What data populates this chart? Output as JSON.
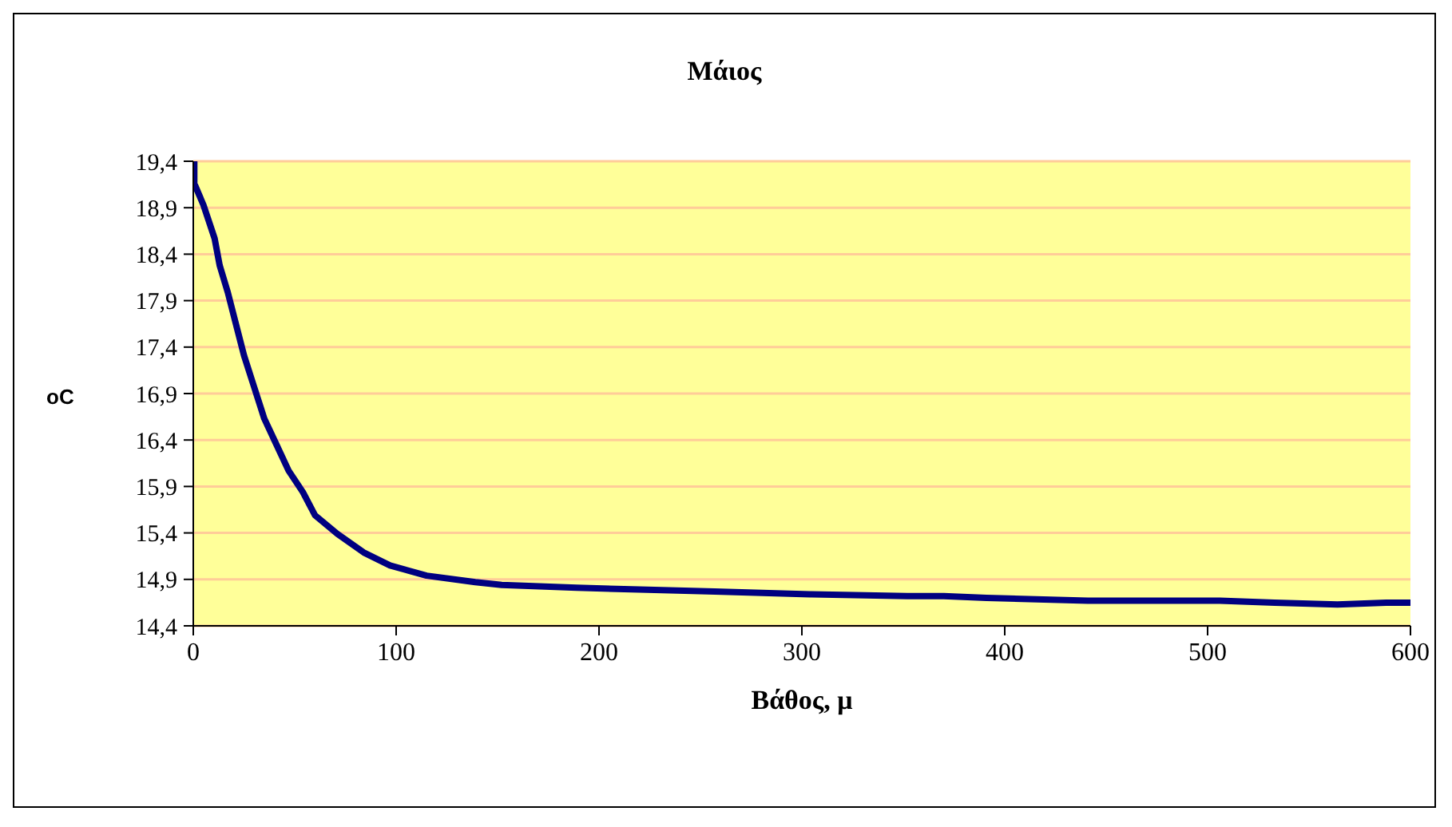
{
  "chart_data": {
    "type": "line",
    "title": "Μάιος",
    "xlabel": "Βάθος, μ",
    "ylabel": "oC",
    "x": [
      0.5,
      0.5,
      5,
      10.5,
      13,
      17,
      21,
      25,
      30,
      35,
      41,
      47,
      54,
      60,
      71,
      84,
      97,
      115,
      139,
      152,
      189,
      220,
      257,
      304,
      352,
      370,
      391,
      441,
      506,
      533,
      564,
      588,
      600
    ],
    "series": [
      {
        "color": "#000080",
        "values": [
          19.39,
          19.16,
          18.93,
          18.57,
          18.28,
          17.99,
          17.65,
          17.31,
          16.97,
          16.63,
          16.35,
          16.07,
          15.84,
          15.59,
          15.39,
          15.19,
          15.05,
          14.94,
          14.87,
          14.84,
          14.81,
          14.79,
          14.77,
          14.74,
          14.72,
          14.72,
          14.7,
          14.67,
          14.67,
          14.65,
          14.63,
          14.65,
          14.65
        ]
      }
    ],
    "xlim": [
      0,
      600
    ],
    "xticks": [
      0,
      100,
      200,
      300,
      400,
      500,
      600
    ],
    "ylim": [
      14.4,
      19.4
    ],
    "yticks": [
      {
        "value": 14.4,
        "label": "14,4"
      },
      {
        "value": 14.9,
        "label": "14,9"
      },
      {
        "value": 15.4,
        "label": "15,4"
      },
      {
        "value": 15.9,
        "label": "15,9"
      },
      {
        "value": 16.4,
        "label": "16,4"
      },
      {
        "value": 16.9,
        "label": "16,9"
      },
      {
        "value": 17.4,
        "label": "17,4"
      },
      {
        "value": 17.9,
        "label": "17,9"
      },
      {
        "value": 18.4,
        "label": "18,4"
      },
      {
        "value": 18.9,
        "label": "18,9"
      },
      {
        "value": 19.4,
        "label": "19,4"
      }
    ],
    "grid": "y",
    "legend": false
  }
}
